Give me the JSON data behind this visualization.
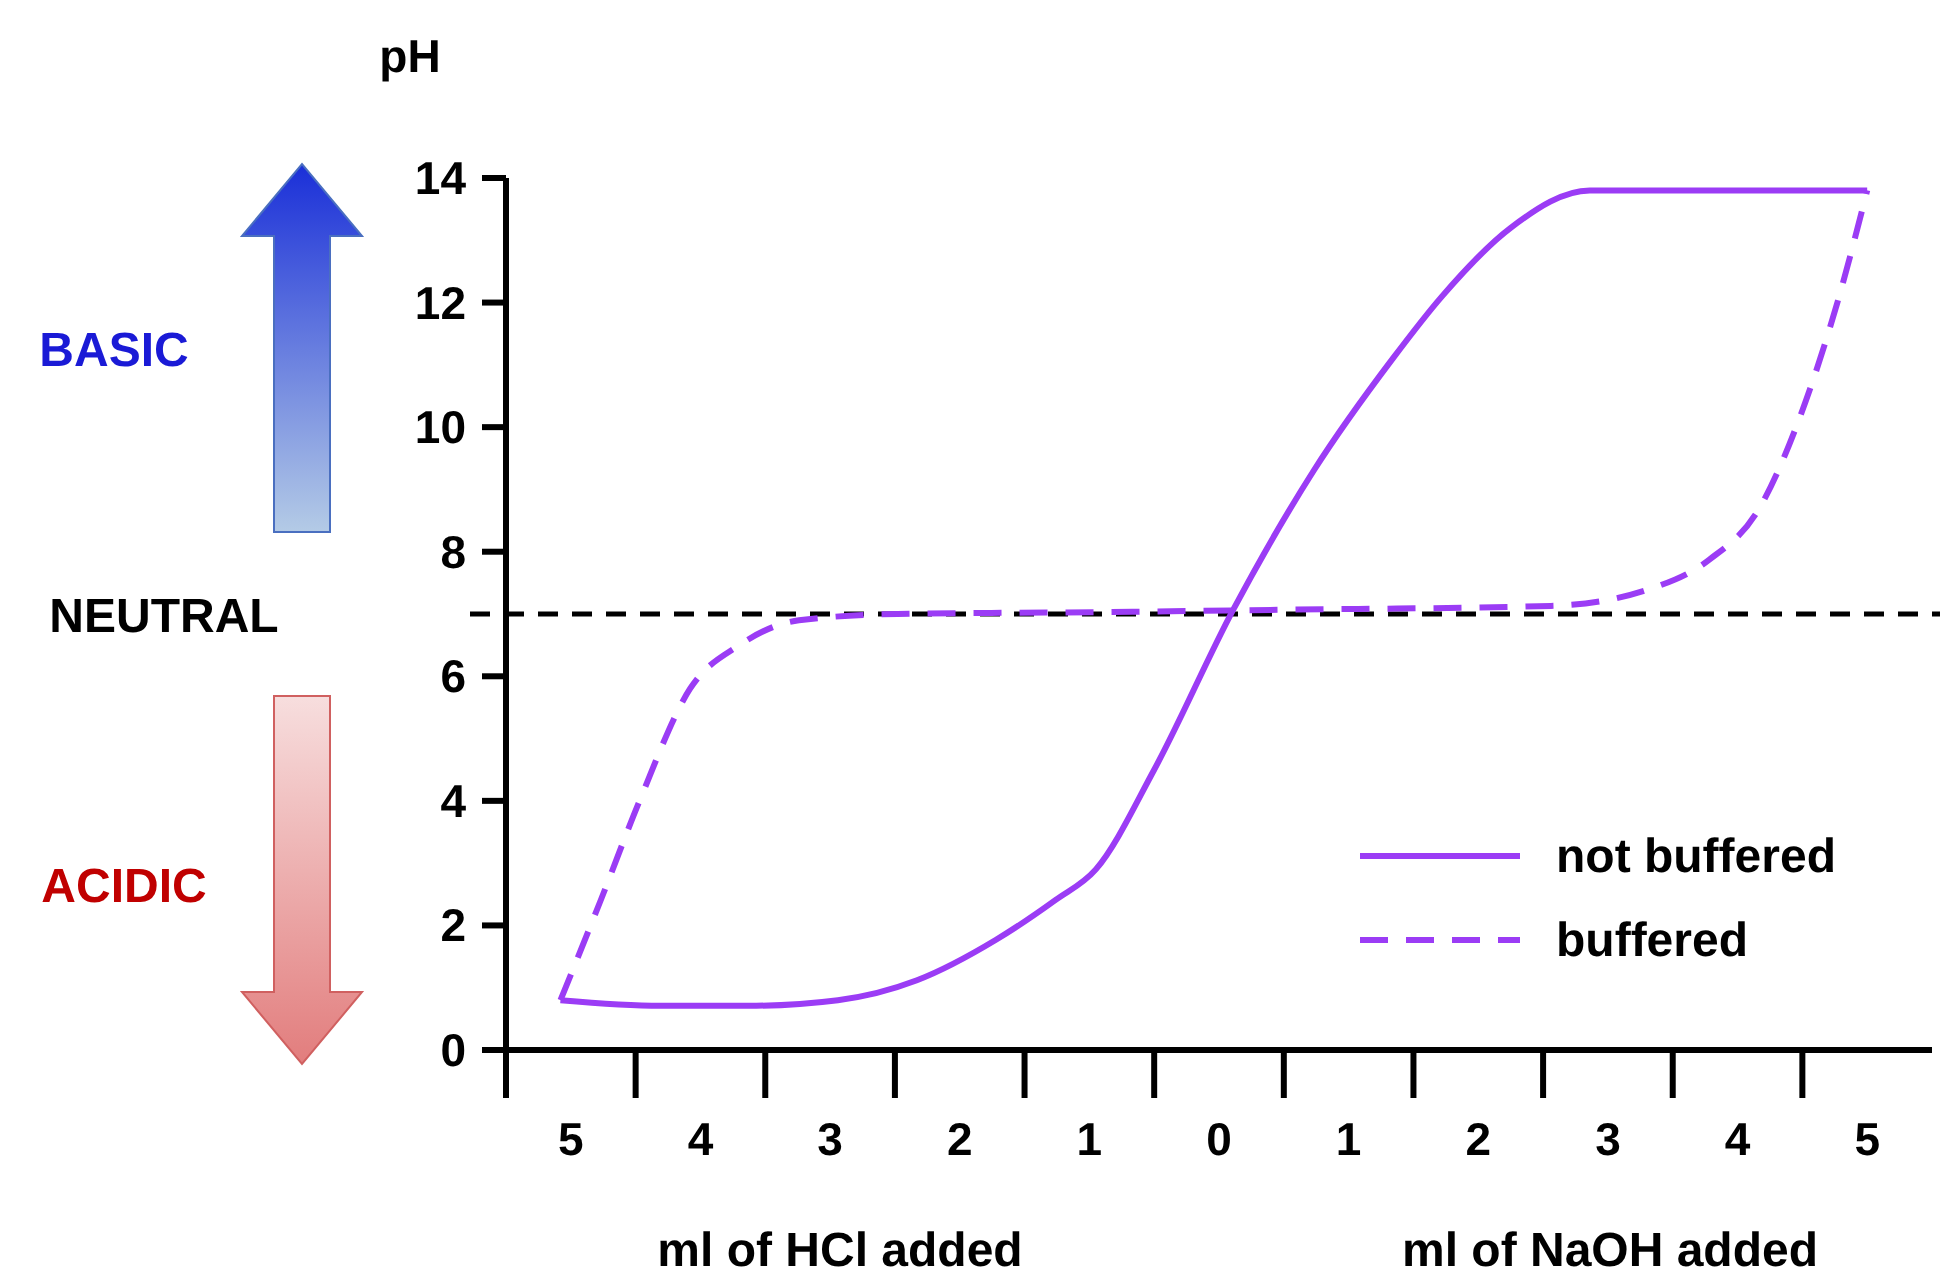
{
  "chart_data": {
    "type": "line",
    "ylabel": "pH",
    "xlim": [
      -5.5,
      5.5
    ],
    "xticks": [
      {
        "value": -5,
        "label": "5"
      },
      {
        "value": -4,
        "label": "4"
      },
      {
        "value": -3,
        "label": "3"
      },
      {
        "value": -2,
        "label": "2"
      },
      {
        "value": -1,
        "label": "1"
      },
      0,
      1,
      2,
      3,
      4,
      5
    ],
    "ylim": [
      0,
      14
    ],
    "yticks": [
      0,
      2,
      4,
      6,
      8,
      10,
      12,
      14
    ],
    "grid": false,
    "legend": "bottom right",
    "marker": "none",
    "ref_lines": [
      {
        "axis": "y",
        "value": 7,
        "color": "#000000",
        "line_style": "dashed"
      }
    ],
    "annotations": [
      "BASIC",
      "NEUTRAL",
      "ACIDIC",
      "ml of HCl added",
      "ml of NaOH added"
    ],
    "series": [
      {
        "name": "not buffered",
        "color": "#9b3cf5",
        "line_style": "solid",
        "x": [
          -5.08,
          -4.31,
          -3.63,
          -2.94,
          -2.33,
          -1.72,
          -1.26,
          -0.95,
          -0.5,
          0.11,
          0.73,
          1.34,
          1.72,
          2.25,
          2.86,
          3.47,
          5.0
        ],
        "values": [
          0.8,
          0.71,
          0.71,
          0.8,
          1.12,
          1.77,
          2.41,
          2.9,
          4.5,
          7.07,
          9.3,
          11.1,
          12.1,
          13.2,
          13.8,
          13.8,
          13.8
        ]
      },
      {
        "name": "buffered",
        "color": "#9b3cf5",
        "line_style": "dashed",
        "x": [
          -5.08,
          -4.77,
          -4.47,
          -4.08,
          -3.7,
          -3.24,
          -2.48,
          -0.95,
          0.57,
          2.56,
          3.32,
          3.78,
          4.16,
          4.47,
          4.77,
          5.0
        ],
        "values": [
          0.8,
          2.4,
          4.0,
          5.8,
          6.5,
          6.9,
          7.0,
          7.03,
          7.07,
          7.13,
          7.4,
          7.87,
          8.67,
          10.1,
          12.0,
          13.8
        ]
      }
    ]
  }
}
